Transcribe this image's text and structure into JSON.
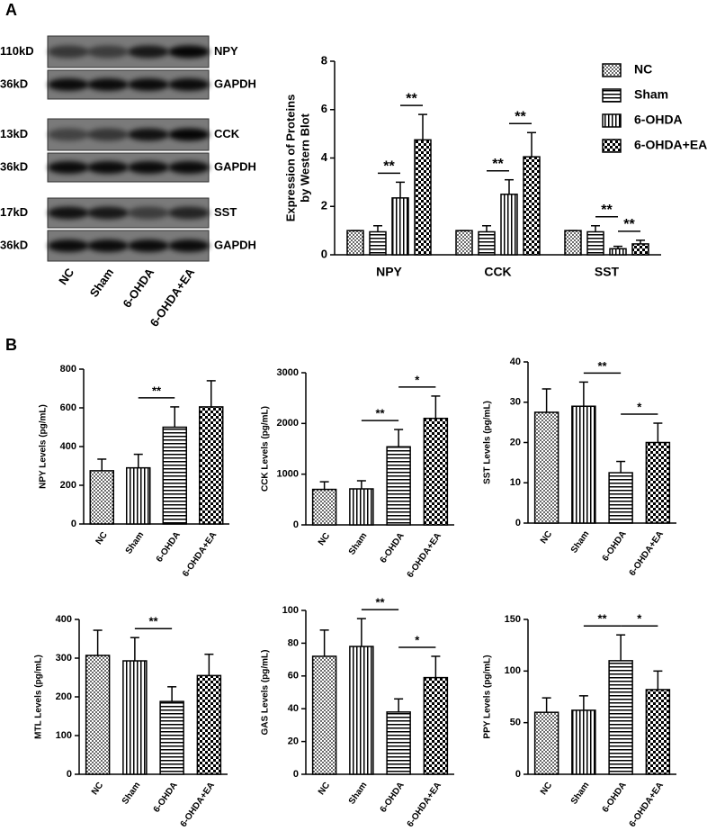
{
  "panels": [
    "A",
    "B"
  ],
  "blot": {
    "rows": [
      {
        "size": "110kD",
        "protein": "NPY"
      },
      {
        "size": "36kD",
        "protein": "GAPDH"
      },
      {
        "size": "13kD",
        "protein": "CCK"
      },
      {
        "size": "36kD",
        "protein": "GAPDH"
      },
      {
        "size": "17kD",
        "protein": "SST"
      },
      {
        "size": "36kD",
        "protein": "GAPDH"
      }
    ],
    "lanes": [
      "NC",
      "Sham",
      "6-OHDA",
      "6-OHDA+EA"
    ]
  },
  "chart_data": [
    {
      "type": "grouped_bar",
      "ylabel": [
        "Expression of Proteins",
        "by Western Blot"
      ],
      "categories": [
        "NPY",
        "CCK",
        "SST"
      ],
      "series": [
        {
          "name": "NC",
          "pattern": "dots",
          "values": [
            1,
            1,
            1
          ],
          "errors": [
            0,
            0,
            0
          ]
        },
        {
          "name": "Sham",
          "pattern": "hlines",
          "values": [
            0.95,
            0.95,
            0.95
          ],
          "errors": [
            0.25,
            0.25,
            0.25
          ]
        },
        {
          "name": "6-OHDA",
          "pattern": "vlines",
          "values": [
            2.35,
            2.5,
            0.25
          ],
          "errors": [
            0.65,
            0.6,
            0.1
          ]
        },
        {
          "name": "6-OHDA+EA",
          "pattern": "checker",
          "values": [
            4.75,
            4.05,
            0.45
          ],
          "errors": [
            1.05,
            1.0,
            0.15
          ]
        }
      ],
      "ylim": [
        0,
        8
      ],
      "yticks": [
        0,
        2,
        4,
        6,
        8
      ],
      "legend": "upper right",
      "annotations": [
        {
          "text": "**",
          "category": 0,
          "between": [
            1,
            2
          ]
        },
        {
          "text": "**",
          "category": 0,
          "between": [
            2,
            3
          ]
        },
        {
          "text": "**",
          "category": 1,
          "between": [
            1,
            2
          ]
        },
        {
          "text": "**",
          "category": 1,
          "between": [
            2,
            3
          ]
        },
        {
          "text": "**",
          "category": 2,
          "between": [
            1,
            2
          ]
        },
        {
          "text": "**",
          "category": 2,
          "between": [
            2,
            3
          ]
        }
      ]
    },
    {
      "type": "bar",
      "ylabel": "NPY Levels (pg/mL)",
      "categories": [
        "NC",
        "Sham",
        "6-OHDA",
        "6-OHDA+EA"
      ],
      "patterns": [
        "dots",
        "vlines",
        "hlines",
        "checker"
      ],
      "values": [
        275,
        290,
        500,
        605
      ],
      "errors": [
        60,
        70,
        105,
        135
      ],
      "ylim": [
        0,
        800
      ],
      "yticks": [
        0,
        200,
        400,
        600,
        800
      ],
      "annotations": [
        {
          "text": "**",
          "between": [
            1,
            2
          ]
        }
      ]
    },
    {
      "type": "bar",
      "ylabel": "CCK Levels (pg/mL)",
      "categories": [
        "NC",
        "Sham",
        "6-OHDA",
        "6-OHDA+EA"
      ],
      "patterns": [
        "dots",
        "vlines",
        "hlines",
        "checker"
      ],
      "values": [
        700,
        710,
        1540,
        2100
      ],
      "errors": [
        150,
        160,
        340,
        440
      ],
      "ylim": [
        0,
        3000
      ],
      "yticks": [
        0,
        1000,
        2000,
        3000
      ],
      "annotations": [
        {
          "text": "**",
          "between": [
            1,
            2
          ]
        },
        {
          "text": "*",
          "between": [
            2,
            3
          ]
        }
      ]
    },
    {
      "type": "bar",
      "ylabel": "SST Levels (pg/mL)",
      "categories": [
        "NC",
        "Sham",
        "6-OHDA",
        "6-OHDA+EA"
      ],
      "patterns": [
        "dots",
        "vlines",
        "hlines",
        "checker"
      ],
      "values": [
        27.5,
        29,
        12.5,
        20
      ],
      "errors": [
        5.8,
        6,
        2.8,
        4.8
      ],
      "ylim": [
        0,
        40
      ],
      "yticks": [
        0,
        10,
        20,
        30,
        40
      ],
      "annotations": [
        {
          "text": "**",
          "between": [
            1,
            2
          ]
        },
        {
          "text": "*",
          "between": [
            2,
            3
          ]
        }
      ]
    },
    {
      "type": "bar",
      "ylabel": "MTL Levels (pg/mL)",
      "categories": [
        "NC",
        "Sham",
        "6-OHDA",
        "6-OHDA+EA"
      ],
      "patterns": [
        "dots",
        "vlines",
        "hlines",
        "checker"
      ],
      "values": [
        307,
        293,
        188,
        255
      ],
      "errors": [
        65,
        60,
        38,
        55
      ],
      "ylim": [
        0,
        400
      ],
      "yticks": [
        0,
        100,
        200,
        300,
        400
      ],
      "annotations": [
        {
          "text": "**",
          "between": [
            1,
            2
          ]
        }
      ]
    },
    {
      "type": "bar",
      "ylabel": "GAS Levels (pg/mL)",
      "categories": [
        "NC",
        "Sham",
        "6-OHDA",
        "6-OHDA+EA"
      ],
      "patterns": [
        "dots",
        "vlines",
        "hlines",
        "checker"
      ],
      "values": [
        72,
        78,
        38,
        59
      ],
      "errors": [
        16,
        17,
        8,
        13
      ],
      "ylim": [
        0,
        100
      ],
      "yticks": [
        0,
        20,
        40,
        60,
        80,
        100
      ],
      "annotations": [
        {
          "text": "**",
          "between": [
            1,
            2
          ]
        },
        {
          "text": "*",
          "between": [
            2,
            3
          ]
        }
      ]
    },
    {
      "type": "bar",
      "ylabel": "PPY Levels (pg/mL)",
      "categories": [
        "NC",
        "Sham",
        "6-OHDA",
        "6-OHDA+EA"
      ],
      "patterns": [
        "dots",
        "vlines",
        "hlines",
        "checker"
      ],
      "values": [
        60,
        62,
        110,
        82
      ],
      "errors": [
        14,
        14,
        25,
        18
      ],
      "ylim": [
        0,
        150
      ],
      "yticks": [
        0,
        50,
        100,
        150
      ],
      "annotations": [
        {
          "text": "**",
          "between": [
            1,
            2
          ]
        },
        {
          "text": "*",
          "between": [
            2,
            3
          ]
        }
      ]
    }
  ]
}
